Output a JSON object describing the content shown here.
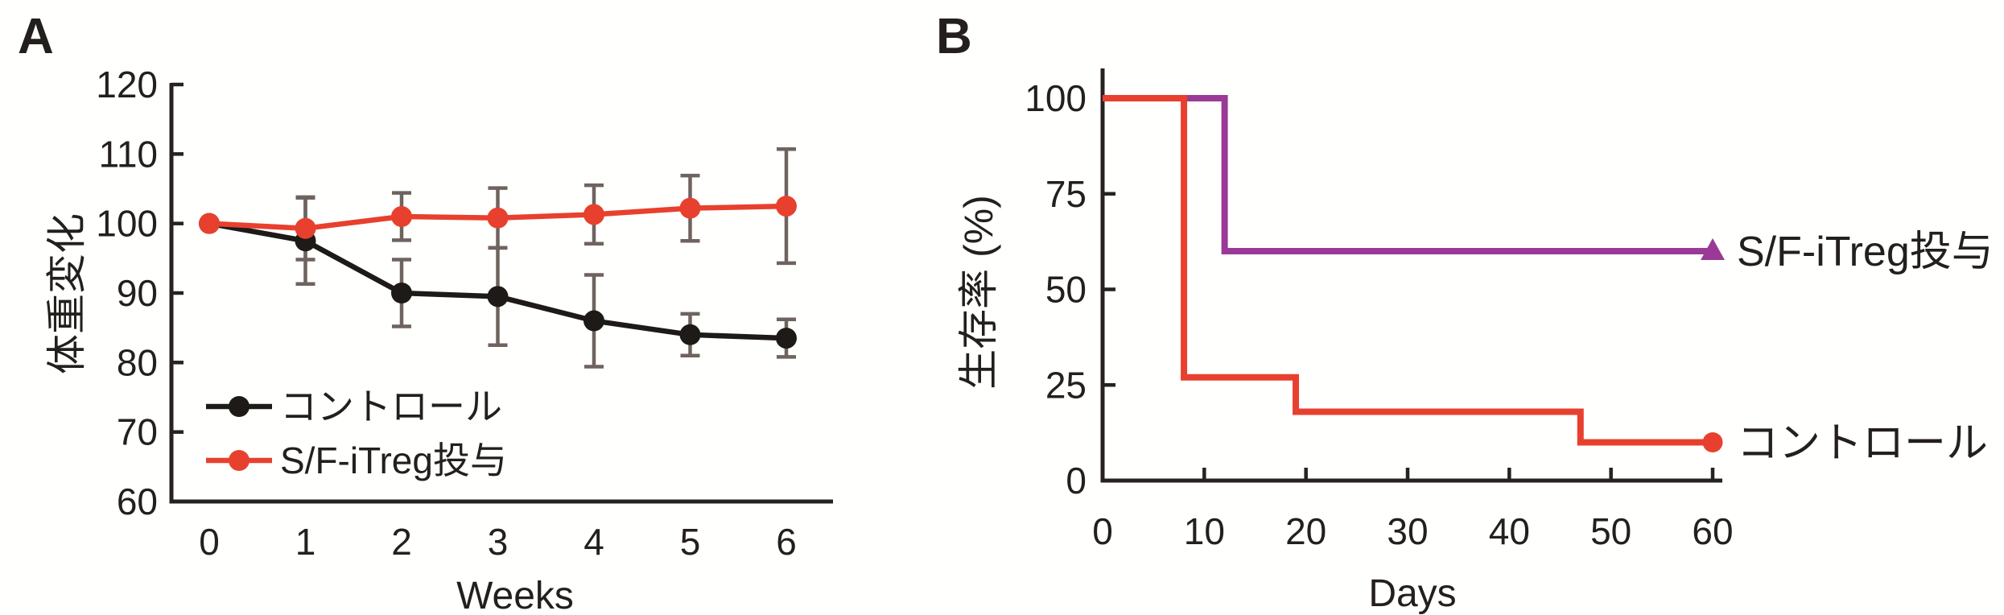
{
  "figure": {
    "background": "#fffffd",
    "axis_color": "#272220",
    "error_bar_color": "#6e635e",
    "panels": [
      {
        "label": "A"
      },
      {
        "label": "B"
      }
    ]
  },
  "chart_data": [
    {
      "type": "line",
      "panel": "A",
      "title": "",
      "xlabel": "Weeks",
      "ylabel": "体重変化",
      "x": [
        0,
        1,
        2,
        3,
        4,
        5,
        6
      ],
      "xticks": [
        0,
        1,
        2,
        3,
        4,
        5,
        6
      ],
      "ylim": [
        60,
        120
      ],
      "yticks": [
        60,
        70,
        80,
        90,
        100,
        110,
        120
      ],
      "grid": false,
      "legend_position": "lower-left",
      "series": [
        {
          "name": "コントロール",
          "color": "#1d1a18",
          "marker": "circle",
          "values": [
            100,
            97.5,
            90,
            89.5,
            86,
            84,
            83.5
          ],
          "err": [
            0,
            6.2,
            4.8,
            7,
            6.6,
            3,
            2.7
          ]
        },
        {
          "name": "S/F-iTreg投与",
          "color": "#e8402e",
          "marker": "circle",
          "values": [
            100,
            99.3,
            101,
            100.8,
            101.3,
            102.2,
            102.5
          ],
          "err": [
            0,
            4.5,
            3.4,
            4.3,
            4.2,
            4.7,
            8.2
          ]
        }
      ]
    },
    {
      "type": "line",
      "subtype": "step-survival",
      "panel": "B",
      "title": "",
      "xlabel": "Days",
      "ylabel": "生存率 (%)",
      "xlim": [
        0,
        60
      ],
      "xticks": [
        0,
        10,
        20,
        30,
        40,
        50,
        60
      ],
      "ylim": [
        0,
        100
      ],
      "yticks": [
        0,
        25,
        50,
        75,
        100
      ],
      "grid": false,
      "legend_position": "line-end-labels",
      "series": [
        {
          "name": "S/F-iTreg投与",
          "color": "#9a3a96",
          "marker": "triangle",
          "points": [
            [
              0,
              100
            ],
            [
              12,
              100
            ],
            [
              12,
              60
            ],
            [
              60,
              60
            ]
          ]
        },
        {
          "name": "コントロール",
          "color": "#e8402e",
          "marker": "circle",
          "points": [
            [
              0,
              100
            ],
            [
              8,
              100
            ],
            [
              8,
              27
            ],
            [
              19,
              27
            ],
            [
              19,
              18
            ],
            [
              47,
              18
            ],
            [
              47,
              10
            ],
            [
              60,
              10
            ]
          ]
        }
      ]
    }
  ]
}
